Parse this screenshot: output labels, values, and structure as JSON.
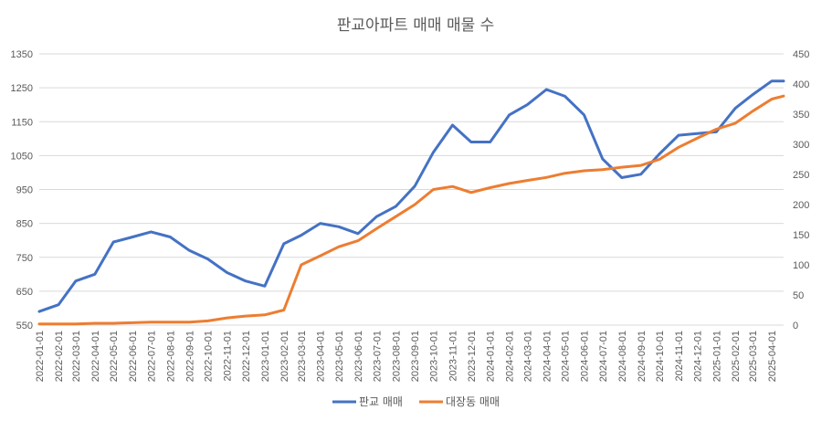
{
  "chart_data": {
    "type": "line",
    "title": "판교아파트 매매 매물 수",
    "xlabel": "",
    "ylabel": "",
    "x": [
      "2022-01-01",
      "2022-02-01",
      "2022-03-01",
      "2022-04-01",
      "2022-05-01",
      "2022-06-01",
      "2022-07-01",
      "2022-08-01",
      "2022-09-01",
      "2022-10-01",
      "2022-11-01",
      "2022-12-01",
      "2023-01-01",
      "2023-02-01",
      "2023-03-01",
      "2023-04-01",
      "2023-05-01",
      "2023-06-01",
      "2023-07-01",
      "2023-08-01",
      "2023-09-01",
      "2023-10-01",
      "2023-11-01",
      "2023-12-01",
      "2024-01-01",
      "2024-02-01",
      "2024-03-01",
      "2024-04-01",
      "2024-05-01",
      "2024-06-01",
      "2024-07-01",
      "2024-08-01",
      "2024-09-01",
      "2024-10-01",
      "2024-11-01",
      "2024-12-01",
      "2025-01-01",
      "2025-02-01",
      "2025-03-01",
      "2025-04-01",
      "2025-04-20"
    ],
    "x_tick_labels": [
      "2022-01-01",
      "2022-02-01",
      "2022-03-01",
      "2022-04-01",
      "2022-05-01",
      "2022-06-01",
      "2022-07-01",
      "2022-08-01",
      "2022-09-01",
      "2022-10-01",
      "2022-11-01",
      "2022-12-01",
      "2023-01-01",
      "2023-02-01",
      "2023-03-01",
      "2023-04-01",
      "2023-05-01",
      "2023-06-01",
      "2023-07-01",
      "2023-08-01",
      "2023-09-01",
      "2023-10-01",
      "2023-11-01",
      "2023-12-01",
      "2024-01-01",
      "2024-02-01",
      "2024-03-01",
      "2024-04-01",
      "2024-05-01",
      "2024-06-01",
      "2024-07-01",
      "2024-08-01",
      "2024-09-01",
      "2024-10-01",
      "2024-11-01",
      "2024-12-01",
      "2025-01-01",
      "2025-02-01",
      "2025-03-01",
      "2025-04-01"
    ],
    "y_left": {
      "ylim": [
        550,
        1350
      ],
      "ticks": [
        550,
        650,
        750,
        850,
        950,
        1050,
        1150,
        1250,
        1350
      ]
    },
    "y_right": {
      "ylim": [
        0,
        450
      ],
      "ticks": [
        0,
        50,
        100,
        150,
        200,
        250,
        300,
        350,
        400,
        450
      ]
    },
    "series": [
      {
        "name": "판교 매매",
        "axis": "left",
        "color": "#4472c4",
        "values": [
          590,
          610,
          680,
          700,
          795,
          810,
          825,
          810,
          770,
          745,
          705,
          680,
          665,
          790,
          815,
          850,
          840,
          820,
          870,
          900,
          960,
          1060,
          1140,
          1090,
          1090,
          1170,
          1200,
          1245,
          1225,
          1170,
          1040,
          985,
          995,
          1055,
          1110,
          1115,
          1120,
          1190,
          1230,
          1270,
          1270
        ]
      },
      {
        "name": "대장동 매매",
        "axis": "right",
        "color": "#ed7d31",
        "values": [
          2,
          2,
          2,
          3,
          3,
          4,
          5,
          5,
          5,
          7,
          12,
          15,
          17,
          25,
          100,
          115,
          130,
          140,
          160,
          180,
          200,
          225,
          230,
          220,
          228,
          235,
          240,
          245,
          252,
          256,
          258,
          262,
          265,
          275,
          295,
          310,
          325,
          335,
          355,
          375,
          380
        ]
      }
    ],
    "grid": true,
    "legend_placement": "bottom"
  }
}
